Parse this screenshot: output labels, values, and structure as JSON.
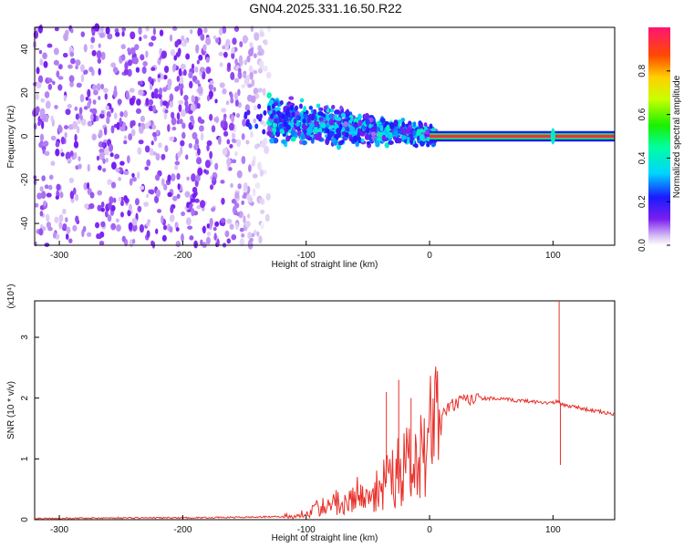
{
  "title": "GN04.2025.331.16.50.R22",
  "chart_data": [
    {
      "type": "heatmap",
      "xlabel": "Height of straight line (km)",
      "ylabel": "Frequency (Hz)",
      "xlim": [
        -320,
        150
      ],
      "ylim": [
        -50,
        50
      ],
      "x_ticks": [
        -300,
        -200,
        -100,
        0,
        100
      ],
      "y_ticks": [
        -40,
        -20,
        0,
        20,
        40
      ],
      "colorbar": {
        "label": "Normalized spectral amplitude",
        "range": [
          0,
          1
        ],
        "ticks": [
          0.0,
          0.2,
          0.4,
          0.6,
          0.8
        ]
      },
      "features": [
        {
          "name": "noise",
          "x_range": [
            -320,
            -130
          ],
          "y_range": [
            -50,
            50
          ],
          "amplitude": 0.1
        },
        {
          "name": "signal-cluster",
          "x_range": [
            -130,
            5
          ],
          "y_center_start": 8,
          "y_center_end": 0,
          "amplitude": 0.35
        },
        {
          "name": "carrier-line",
          "x_range": [
            0,
            150
          ],
          "y": 0,
          "amplitude": 0.95
        },
        {
          "name": "spike",
          "x": 100,
          "y": 0,
          "amplitude": 0.4
        }
      ]
    },
    {
      "type": "line",
      "xlabel": "Height of straight line (km)",
      "ylabel": "SNR (10 * v/v)",
      "y_multiplier": "(x10⁴)",
      "xlim": [
        -320,
        150
      ],
      "ylim": [
        0,
        3.6
      ],
      "x_ticks": [
        -300,
        -200,
        -100,
        0,
        100
      ],
      "y_ticks": [
        0,
        1,
        2,
        3
      ],
      "color": "#e8302a",
      "series": [
        {
          "x": [
            -320,
            -250,
            -200,
            -150,
            -120,
            -110,
            -100,
            -90,
            -80,
            -70,
            -60,
            -50,
            -40,
            -30,
            -20,
            -10,
            0,
            10,
            20,
            30,
            40,
            50,
            60,
            70,
            80,
            90,
            100,
            104,
            106,
            110,
            120,
            130,
            140,
            150
          ],
          "y": [
            0.02,
            0.03,
            0.03,
            0.04,
            0.05,
            0.08,
            0.2,
            0.3,
            0.4,
            0.5,
            0.6,
            0.7,
            0.9,
            1.1,
            1.3,
            1.5,
            1.6,
            1.75,
            1.9,
            1.96,
            2.0,
            1.99,
            1.98,
            1.96,
            1.95,
            1.93,
            1.92,
            1.95,
            1.9,
            1.88,
            1.85,
            1.8,
            1.77,
            1.73
          ]
        }
      ],
      "spikes": [
        {
          "x": -25,
          "y": 2.3
        },
        {
          "x": -35,
          "y": 2.1
        },
        {
          "x": -15,
          "y": 2.0
        },
        {
          "x": 105,
          "y": 3.6
        },
        {
          "x": 106,
          "y": 0.9
        }
      ]
    }
  ]
}
